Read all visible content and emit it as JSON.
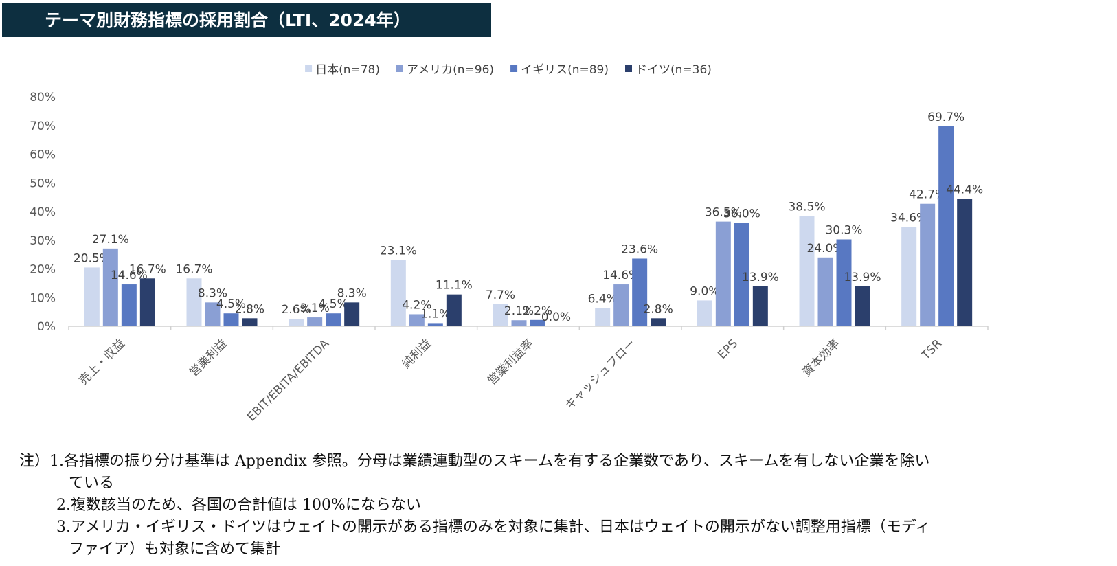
{
  "title": "テーマ別財務指標の採用割合（LTI、2024年）",
  "chart_data": {
    "type": "bar",
    "ylim": [
      0,
      80
    ],
    "ytick_labels": [
      "0%",
      "10%",
      "20%",
      "30%",
      "40%",
      "50%",
      "60%",
      "70%",
      "80%"
    ],
    "grid": false,
    "legend_position": "top-center",
    "categories": [
      "売上・収益",
      "営業利益",
      "EBIT/EBITA/EBITDA",
      "純利益",
      "営業利益率",
      "キャッシュフロー",
      "EPS",
      "資本効率",
      "TSR"
    ],
    "series": [
      {
        "name": "日本(n=78)",
        "color": "#cdd8ee",
        "values": [
          20.5,
          16.7,
          2.6,
          23.1,
          7.7,
          6.4,
          9.0,
          38.5,
          34.6
        ],
        "labels": [
          "20.5%",
          "16.7%",
          "2.6%",
          "23.1%",
          "7.7%",
          "6.4%",
          "9.0%",
          "38.5%",
          "34.6%"
        ]
      },
      {
        "name": "アメリカ(n=96)",
        "color": "#8a9fd4",
        "values": [
          27.1,
          8.3,
          3.1,
          4.2,
          2.1,
          14.6,
          36.5,
          24.0,
          42.7
        ],
        "labels": [
          "27.1%",
          "8.3%",
          "3.1%",
          "4.2%",
          "2.1%",
          "14.6%",
          "36.5%",
          "24.0%",
          "42.7%"
        ]
      },
      {
        "name": "イギリス(n=89)",
        "color": "#5878c2",
        "values": [
          14.6,
          4.5,
          4.5,
          1.1,
          2.2,
          23.6,
          36.0,
          30.3,
          69.7
        ],
        "labels": [
          "14.6%",
          "4.5%",
          "4.5%",
          "1.1%",
          "2.2%",
          "23.6%",
          "36.0%",
          "30.3%",
          "69.7%"
        ]
      },
      {
        "name": "ドイツ(n=36)",
        "color": "#2b3f6c",
        "values": [
          16.7,
          2.8,
          8.3,
          11.1,
          0.0,
          2.8,
          13.9,
          13.9,
          44.4
        ],
        "labels": [
          "16.7%",
          "2.8%",
          "8.3%",
          "11.1%",
          "0.0%",
          "2.8%",
          "13.9%",
          "13.9%",
          "44.4%"
        ]
      }
    ]
  },
  "notes": {
    "line1": "注）1.各指標の振り分け基準は Appendix 参照。分母は業績連動型のスキームを有する企業数であり、スキームを有しない企業を除い",
    "line1_cont": "ている",
    "line2": "2.複数該当のため、各国の合計値は 100%にならない",
    "line3": "3.アメリカ・イギリス・ドイツはウェイトの開示がある指標のみを対象に集計、日本はウェイトの開示がない調整用指標（モディ",
    "line3_cont": "ファイア）も対象に含めて集計"
  }
}
